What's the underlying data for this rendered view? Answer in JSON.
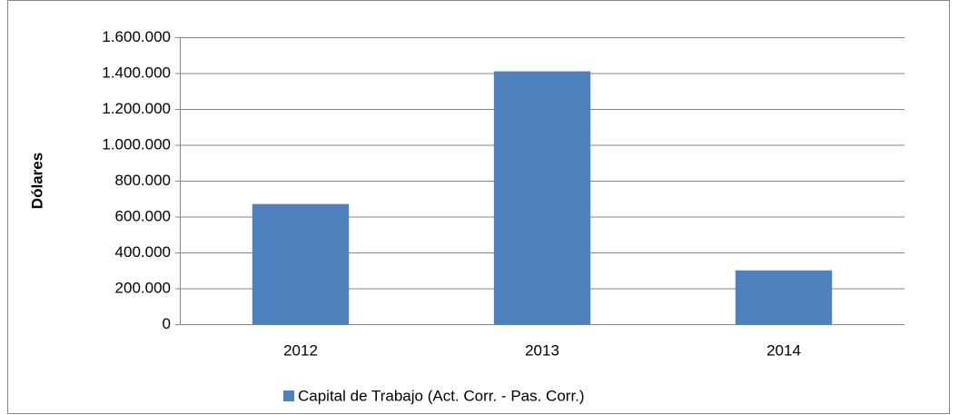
{
  "chart_data": {
    "type": "bar",
    "y_label": "Dólares",
    "categories": [
      "2012",
      "2013",
      "2014"
    ],
    "series": [
      {
        "name": "Capital de Trabajo (Act. Corr. - Pas. Corr.)",
        "color": "#4f81bd",
        "values": [
          670000,
          1410000,
          300000
        ]
      }
    ],
    "ylim": [
      0,
      1600000
    ],
    "yticks": [
      0,
      {
        "value": 200000,
        "label": "200.000"
      },
      {
        "value": 400000,
        "label": "400.000"
      },
      {
        "value": 600000,
        "label": "600.000"
      },
      {
        "value": 800000,
        "label": "800.000"
      },
      {
        "value": 1000000,
        "label": "1.000.000"
      },
      {
        "value": 1200000,
        "label": "1.200.000"
      },
      {
        "value": 1400000,
        "label": "1.400.000"
      },
      {
        "value": 1600000,
        "label": "1.600.000"
      }
    ],
    "grid": true,
    "legend": "bottom"
  }
}
